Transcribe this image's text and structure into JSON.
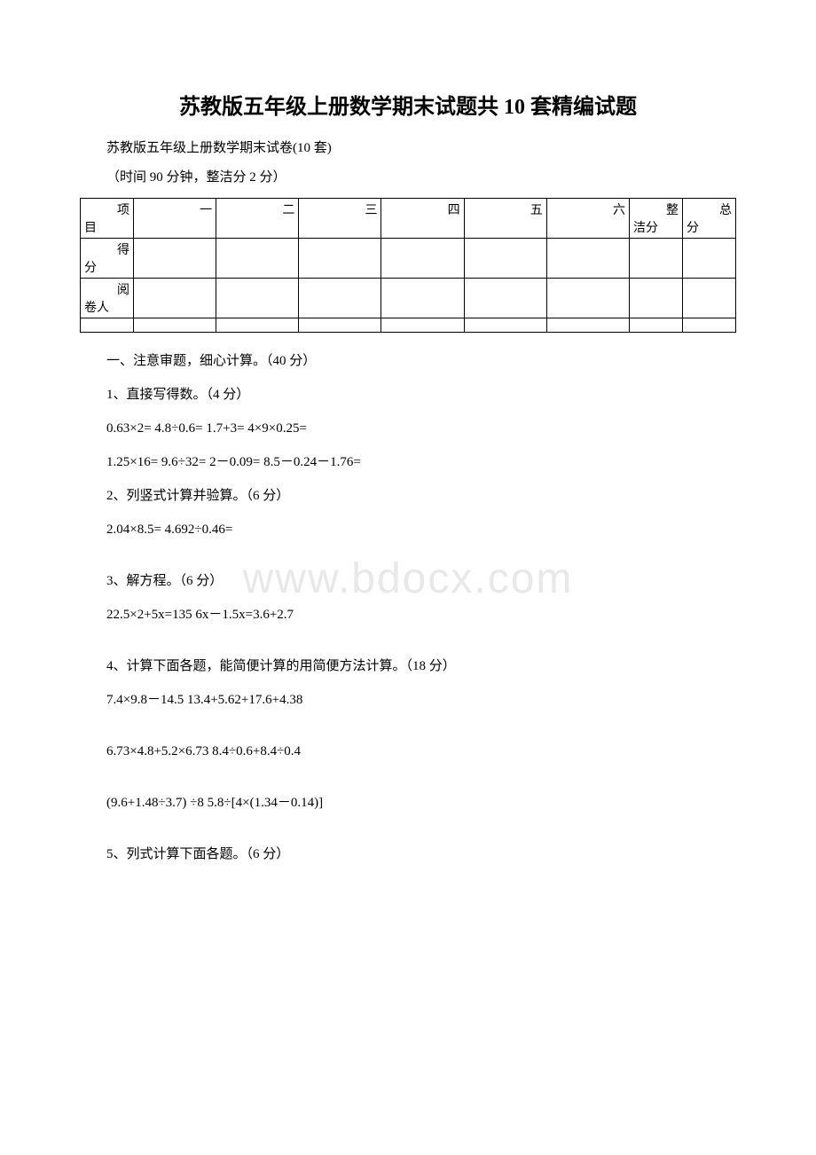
{
  "title": "苏教版五年级上册数学期末试题共 10 套精编试题",
  "subtitle": "苏教版五年级上册数学期末试卷(10 套)",
  "timeInfo": "（时间 90 分钟，整洁分 2 分）",
  "watermark": "www.bdocx.com",
  "scoreTable": {
    "row1": {
      "label": "项目",
      "cols": [
        "一",
        "二",
        "三",
        "四",
        "五",
        "六",
        "整洁分",
        "总分"
      ]
    },
    "row2": {
      "label": "得分"
    },
    "row3": {
      "label": "阅卷人"
    }
  },
  "section1": {
    "heading": "一、注意审题，细心计算。（40 分）",
    "q1": {
      "title": "1、直接写得数。（4 分）",
      "line1": "0.63×2= 4.8÷0.6= 1.7+3= 4×9×0.25=",
      "line2": "1.25×16= 9.6÷32= 2－0.09= 8.5－0.24－1.76="
    },
    "q2": {
      "title": "2、列竖式计算并验算。（6 分）",
      "line1": "2.04×8.5= 4.692÷0.46="
    },
    "q3": {
      "title": "3、解方程。（6 分）",
      "line1": " 22.5×2+5x=135 6x－1.5x=3.6+2.7"
    },
    "q4": {
      "title": "4、计算下面各题，能简便计算的用简便方法计算。（18 分）",
      "line1": "7.4×9.8－14.5 13.4+5.62+17.6+4.38",
      "line2": "6.73×4.8+5.2×6.73 8.4÷0.6+8.4÷0.4",
      "line3": "(9.6+1.48÷3.7) ÷8 5.8÷[4×(1.34－0.14)]"
    },
    "q5": {
      "title": "5、列式计算下面各题。（6 分）"
    }
  }
}
